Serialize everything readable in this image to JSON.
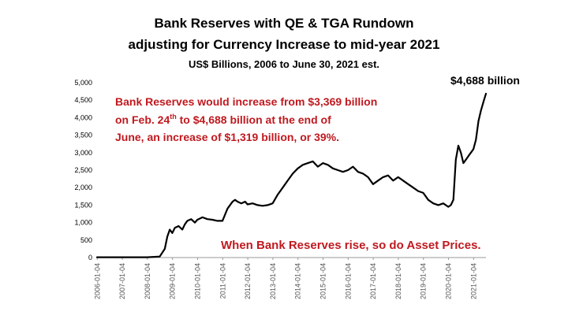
{
  "chart_data": {
    "type": "line",
    "title_lines": [
      "Bank Reserves with QE & TGA Rundown",
      "adjusting for Currency Increase to mid-year 2021",
      "US$ Billions, 2006 to June 30, 2021 est."
    ],
    "xlabel": "",
    "ylabel": "",
    "ylim": [
      0,
      5000
    ],
    "yticks": [
      "0",
      "500",
      "1,000",
      "1,500",
      "2,000",
      "2,500",
      "3,000",
      "3,500",
      "4,000",
      "4,500",
      "5,000"
    ],
    "xticks": [
      "2006-01-04",
      "2007-01-04",
      "2008-01-04",
      "2009-01-04",
      "2010-01-04",
      "2011-01-04",
      "2012-01-04",
      "2013-01-04",
      "2014-01-04",
      "2015-01-04",
      "2016-01-04",
      "2017-01-04",
      "2018-01-04",
      "2019-01-04",
      "2020-01-04",
      "2021-01-04"
    ],
    "grid": false,
    "legend": "none",
    "line_color": "#000000",
    "series": [
      {
        "x": [
          2006.0,
          2006.5,
          2007.0,
          2007.5,
          2008.0,
          2008.5,
          2008.7,
          2008.8,
          2008.9,
          2009.0,
          2009.1,
          2009.25,
          2009.4,
          2009.5,
          2009.6,
          2009.75,
          2009.9,
          2010.0,
          2010.2,
          2010.4,
          2010.6,
          2010.8,
          2011.0,
          2011.2,
          2011.4,
          2011.5,
          2011.6,
          2011.75,
          2011.9,
          2012.0,
          2012.2,
          2012.4,
          2012.6,
          2012.8,
          2013.0,
          2013.2,
          2013.4,
          2013.6,
          2013.8,
          2014.0,
          2014.2,
          2014.4,
          2014.6,
          2014.8,
          2015.0,
          2015.2,
          2015.4,
          2015.6,
          2015.8,
          2016.0,
          2016.2,
          2016.4,
          2016.6,
          2016.8,
          2017.0,
          2017.2,
          2017.4,
          2017.6,
          2017.8,
          2018.0,
          2018.2,
          2018.4,
          2018.6,
          2018.8,
          2019.0,
          2019.2,
          2019.4,
          2019.6,
          2019.8,
          2020.0,
          2020.1,
          2020.2,
          2020.3,
          2020.4,
          2020.5,
          2020.6,
          2020.7,
          2020.8,
          2020.9,
          2021.0,
          2021.1,
          2021.2,
          2021.3,
          2021.4,
          2021.5
        ],
        "values": [
          10,
          10,
          10,
          10,
          10,
          30,
          250,
          600,
          800,
          700,
          850,
          900,
          800,
          950,
          1050,
          1100,
          1000,
          1080,
          1150,
          1100,
          1080,
          1050,
          1050,
          1400,
          1600,
          1650,
          1600,
          1550,
          1600,
          1520,
          1550,
          1500,
          1480,
          1500,
          1550,
          1800,
          2000,
          2200,
          2400,
          2550,
          2650,
          2700,
          2750,
          2600,
          2700,
          2650,
          2550,
          2500,
          2450,
          2500,
          2600,
          2450,
          2400,
          2300,
          2100,
          2200,
          2300,
          2350,
          2200,
          2300,
          2200,
          2100,
          2000,
          1900,
          1850,
          1650,
          1550,
          1500,
          1550,
          1450,
          1500,
          1650,
          2800,
          3200,
          3000,
          2700,
          2800,
          2900,
          3000,
          3100,
          3369,
          3900,
          4200,
          4450,
          4688
        ]
      }
    ],
    "annotations": {
      "end_label": "$4,688 billion",
      "red_line1": "Bank Reserves would increase from $3,369 billion",
      "red_line2_pre": "on Feb. 24",
      "red_line2_sup": "th",
      "red_line2_post": " to $4,688 billion at the end of",
      "red_line3": "June, an increase of $1,319 billion, or 39%.",
      "bottom_note": "When Bank Reserves rise, so do Asset Prices."
    }
  }
}
